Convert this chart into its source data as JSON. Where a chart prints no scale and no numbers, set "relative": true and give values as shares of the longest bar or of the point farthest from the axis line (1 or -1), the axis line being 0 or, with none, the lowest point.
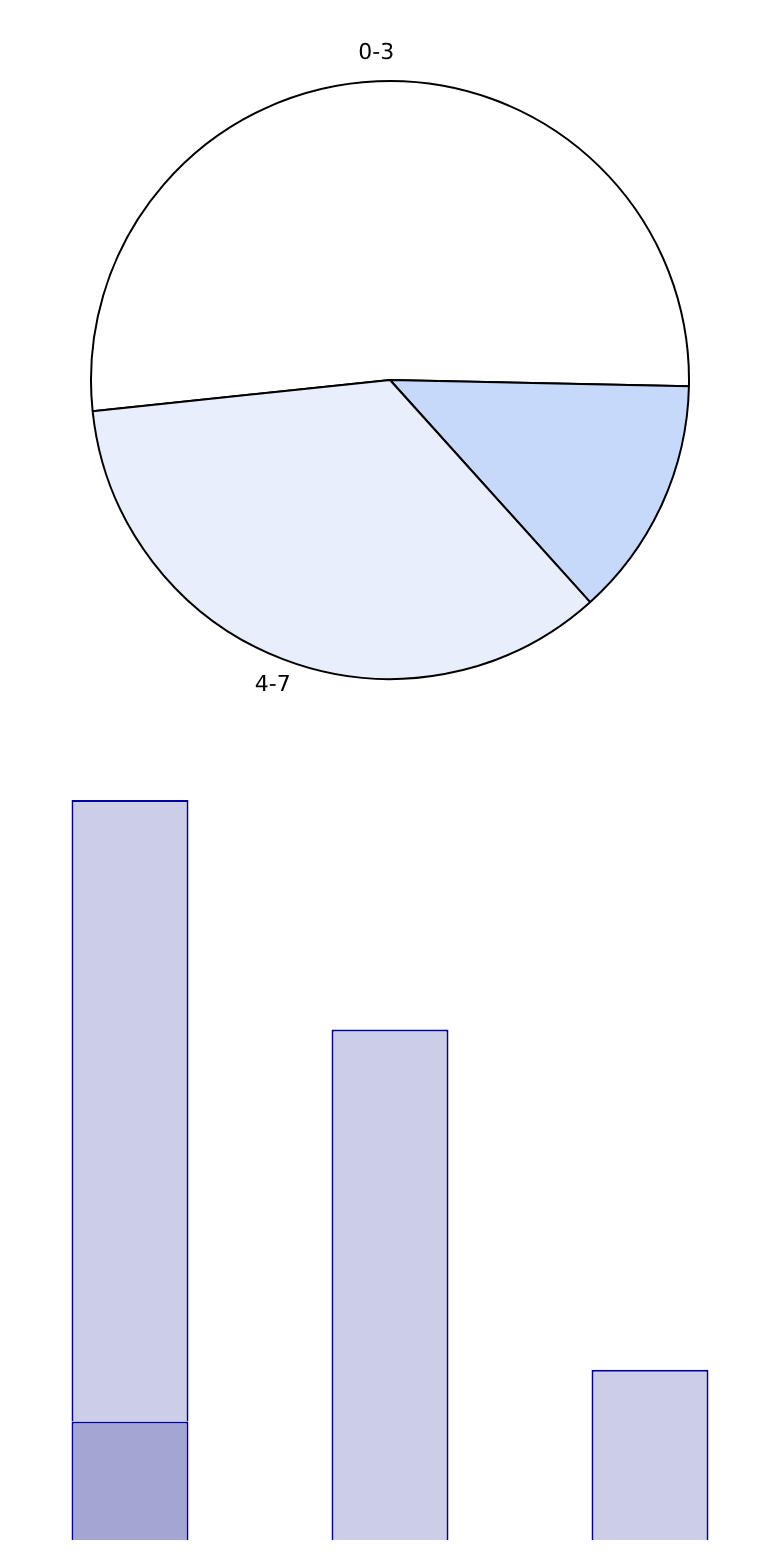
{
  "chart_data": [
    {
      "type": "pie",
      "categories": [
        "0-3",
        null,
        "4-7"
      ],
      "values": [
        52,
        13,
        35
      ],
      "colors": [
        "#ffffff",
        "#c6d9fb",
        "#e8eefc"
      ],
      "legend": false
    },
    {
      "type": "bar",
      "categories": [
        null,
        null,
        null
      ],
      "relative": true,
      "stacked": true,
      "legend": false,
      "series": [
        {
          "color": "#a3a5d3",
          "values": [
            0.16,
            null,
            null
          ]
        },
        {
          "color": "#cccde6",
          "values": [
            0.84,
            0.69,
            0.23
          ]
        }
      ]
    }
  ]
}
